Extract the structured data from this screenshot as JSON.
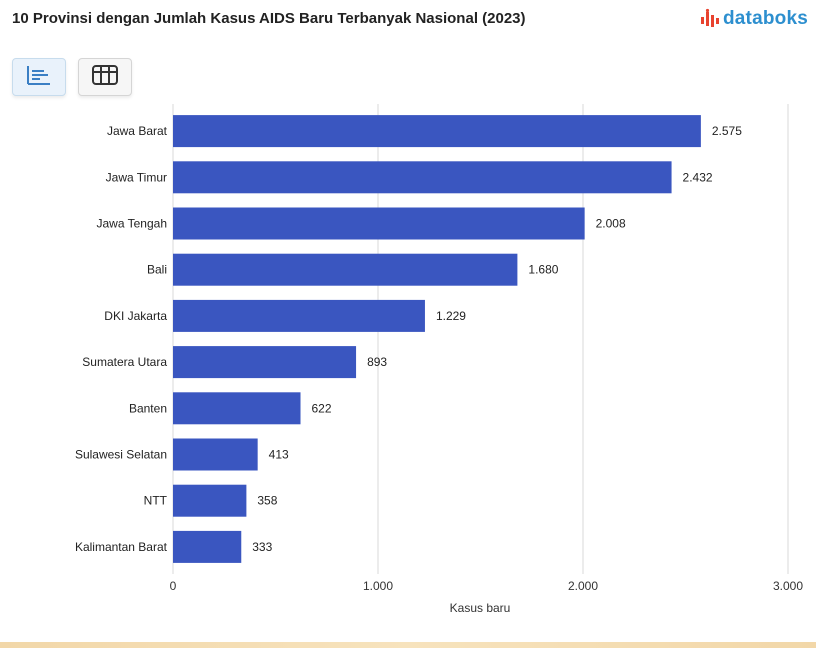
{
  "header": {
    "title": "10 Provinsi dengan Jumlah Kasus AIDS Baru Terbanyak Nasional (2023)",
    "brand": "databoks",
    "brand_icon": "databoks-logo-icon"
  },
  "toolbar": {
    "chart_view_icon": "bar-chart-icon",
    "table_view_icon": "table-grid-icon"
  },
  "colors": {
    "bar": "#3a56c0",
    "brand": "#2d8fcf",
    "brand_mark": "#e8432f",
    "grid": "#d9d9d9"
  },
  "chart_data": {
    "type": "bar",
    "orientation": "horizontal",
    "title": "10 Provinsi dengan Jumlah Kasus AIDS Baru Terbanyak Nasional (2023)",
    "categories": [
      "Jawa Barat",
      "Jawa Timur",
      "Jawa Tengah",
      "Bali",
      "DKI Jakarta",
      "Sumatera Utara",
      "Banten",
      "Sulawesi Selatan",
      "NTT",
      "Kalimantan Barat"
    ],
    "values": [
      2575,
      2432,
      2008,
      1680,
      1229,
      893,
      622,
      413,
      358,
      333
    ],
    "value_labels": [
      "2.575",
      "2.432",
      "2.008",
      "1.680",
      "1.229",
      "893",
      "622",
      "413",
      "358",
      "333"
    ],
    "xlabel": "Kasus baru",
    "ylabel": "",
    "xlim": [
      0,
      3000
    ],
    "ticks": [
      0,
      1000,
      2000,
      3000
    ],
    "tick_labels": [
      "0",
      "1.000",
      "2.000",
      "3.000"
    ],
    "grid": true,
    "legend": "none"
  }
}
